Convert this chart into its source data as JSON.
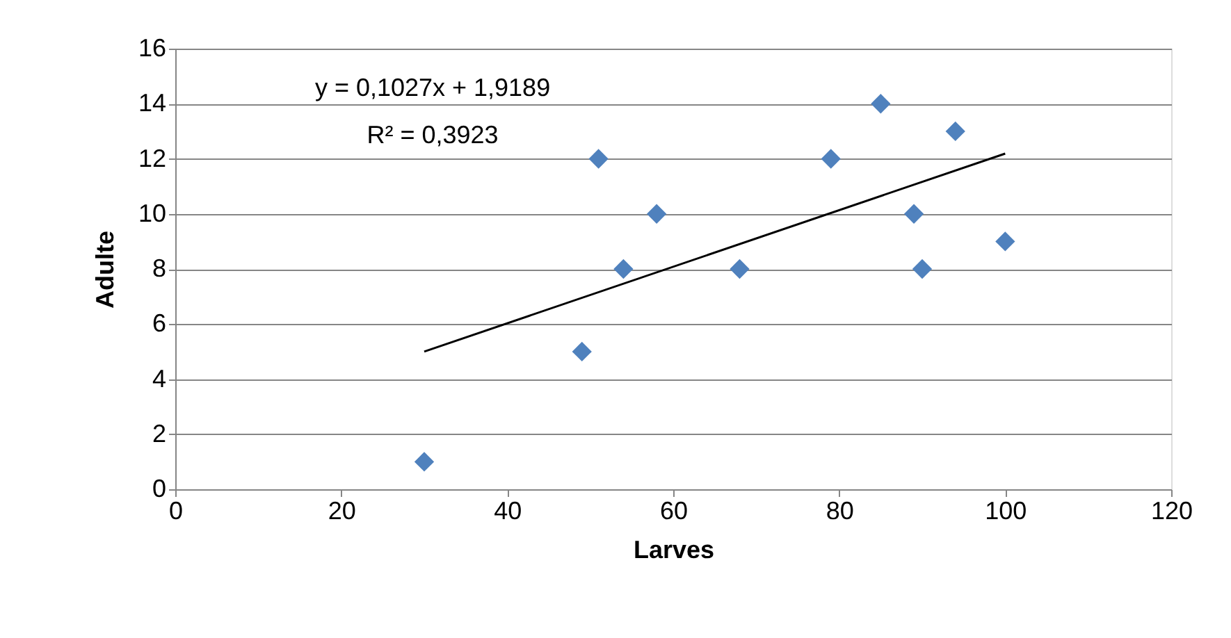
{
  "chart_data": {
    "type": "scatter",
    "xlabel": "Larves",
    "ylabel": "Adulte",
    "series": [
      {
        "color": "#4f81bd",
        "marker": "diamond",
        "x": [
          30,
          49,
          51,
          54,
          58,
          68,
          79,
          85,
          89,
          90,
          94,
          100
        ],
        "values": [
          1,
          5,
          12,
          8,
          10,
          8,
          12,
          14,
          10,
          8,
          13,
          9
        ]
      },
      {
        "type": "line",
        "color": "#000000",
        "line_style": "solid",
        "x": [
          30,
          100
        ],
        "values": [
          5.0,
          12.19
        ]
      }
    ],
    "xlim": [
      0,
      120
    ],
    "xticks": [
      0,
      20,
      40,
      60,
      80,
      100,
      120
    ],
    "ylim": [
      0,
      16
    ],
    "yticks": [
      0,
      2,
      4,
      6,
      8,
      10,
      12,
      14,
      16
    ],
    "grid": "y",
    "annotations": [
      "y = 0,1027x + 1,9189",
      "R² = 0,3923"
    ]
  }
}
